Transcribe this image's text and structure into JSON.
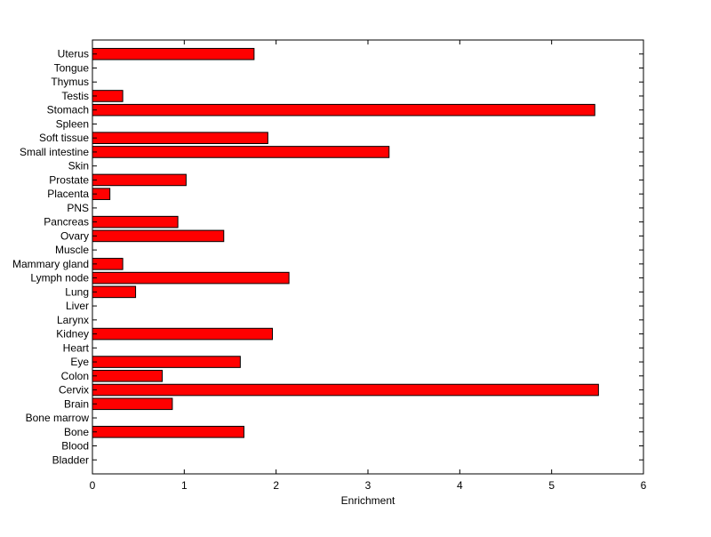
{
  "chart_data": {
    "type": "bar",
    "orientation": "horizontal",
    "title": "",
    "xlabel": "Enrichment",
    "ylabel": "",
    "xlim": [
      0,
      6
    ],
    "xticks": [
      "0",
      "1",
      "2",
      "3",
      "4",
      "5",
      "6"
    ],
    "grid": false,
    "legend": "none",
    "bar_color": "#ff0000",
    "bar_edge_color": "#000000",
    "categories": [
      "Bladder",
      "Blood",
      "Bone",
      "Bone marrow",
      "Brain",
      "Cervix",
      "Colon",
      "Eye",
      "Heart",
      "Kidney",
      "Larynx",
      "Liver",
      "Lung",
      "Lymph node",
      "Mammary gland",
      "Muscle",
      "Ovary",
      "Pancreas",
      "PNS",
      "Placenta",
      "Prostate",
      "Skin",
      "Small intestine",
      "Soft tissue",
      "Spleen",
      "Stomach",
      "Testis",
      "Thymus",
      "Tongue",
      "Uterus"
    ],
    "values": [
      0,
      0,
      1.65,
      0,
      0.87,
      5.51,
      0.76,
      1.61,
      0,
      1.96,
      0,
      0,
      0.47,
      2.14,
      0.33,
      0,
      1.43,
      0.93,
      0,
      0.19,
      1.02,
      0,
      3.23,
      1.91,
      0,
      5.47,
      0.33,
      0,
      0,
      1.76
    ]
  }
}
